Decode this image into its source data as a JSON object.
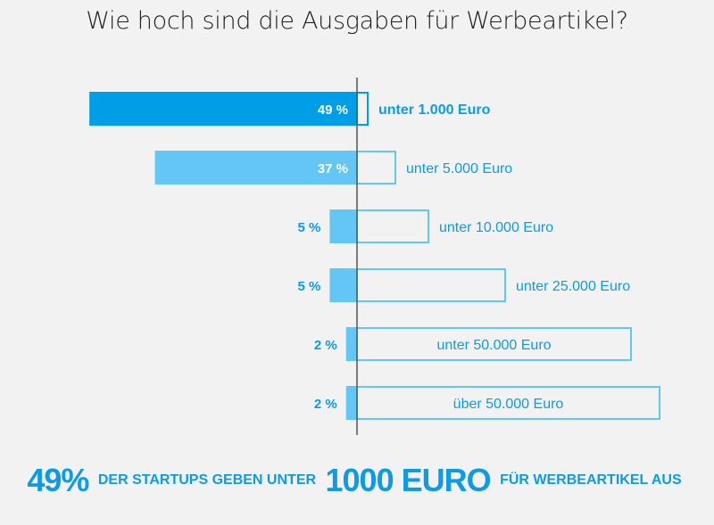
{
  "chart_data": {
    "type": "bar",
    "orientation": "horizontal",
    "title": "Wie hoch sind die Ausgaben für Werbeartikel?",
    "categories": [
      "unter 1.000 Euro",
      "unter 5.000 Euro",
      "unter 10.000 Euro",
      "unter 25.000 Euro",
      "unter 50.000 Euro",
      "über 50.000 Euro"
    ],
    "values": [
      49,
      37,
      5,
      5,
      2,
      2
    ],
    "value_labels": [
      "49 %",
      "37 %",
      "5 %",
      "5 %",
      "2 %",
      "2 %"
    ],
    "unit": "%",
    "grid": false,
    "legend": "none",
    "colors": {
      "highlight": "#019ee8",
      "bar": "#63c6f5",
      "outline": "#63c6f5",
      "label": "#0d9be6",
      "axis": "#555555"
    }
  },
  "footer": {
    "pct": "49%",
    "text1": "DER STARTUPS GEBEN UNTER",
    "amount": "1000 EURO",
    "text2": "FÜR WERBEARTIKEL AUS"
  }
}
